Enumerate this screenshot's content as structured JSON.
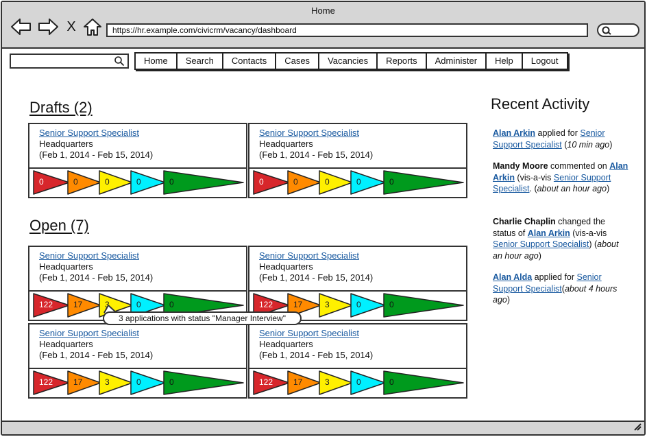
{
  "browser": {
    "title": "Home",
    "url": "https://hr.example.com/civicrm/vacancy/dashboard",
    "close_glyph": "X"
  },
  "site_search": {
    "value": ""
  },
  "nav": [
    "Home",
    "Search",
    "Contacts",
    "Cases",
    "Vacancies",
    "Reports",
    "Administer",
    "Help",
    "Logout"
  ],
  "drafts": {
    "title": "Drafts (2)",
    "cards": [
      {
        "title": "Senior Support Specialist",
        "location": "Headquarters",
        "dates": "(Feb 1, 2014 - Feb 15, 2014)",
        "counts": [
          "0",
          "0",
          "0",
          "0",
          "0"
        ]
      },
      {
        "title": "Senior Support Specialist",
        "location": "Headquarters",
        "dates": "(Feb 1, 2014 - Feb 15, 2014)",
        "counts": [
          "0",
          "0",
          "0",
          "0",
          "0"
        ]
      }
    ]
  },
  "open": {
    "title": "Open (7)",
    "cards": [
      {
        "title": "Senior Support Specialist",
        "location": "Headquarters",
        "dates": "(Feb 1, 2014 - Feb 15, 2014)",
        "counts": [
          "122",
          "17",
          "3",
          "0",
          "0"
        ]
      },
      {
        "title": "Senior Support Specialist",
        "location": "Headquarters",
        "dates": "(Feb 1, 2014 - Feb 15, 2014)",
        "counts": [
          "122",
          "17",
          "3",
          "0",
          "0"
        ]
      },
      {
        "title": "Senior Support Specialist",
        "location": "Headquarters",
        "dates": "(Feb 1, 2014 - Feb 15, 2014)",
        "counts": [
          "122",
          "17",
          "3",
          "0",
          "0"
        ]
      },
      {
        "title": "Senior Support Specialist",
        "location": "Headquarters",
        "dates": "(Feb 1, 2014 - Feb 15, 2014)",
        "counts": [
          "122",
          "17",
          "3",
          "0",
          "0"
        ]
      }
    ]
  },
  "tooltip": "3 applications with status \"Manager Interview\"",
  "stage_colors": [
    "#d7262b",
    "#ff8a00",
    "#fff000",
    "#00f0ff",
    "#009a1d"
  ],
  "recent": {
    "title": "Recent Activity",
    "items": [
      {
        "actor": "Alan Arkin",
        "actor_link": true,
        "parts": [
          {
            "t": "text",
            "v": " applied for "
          },
          {
            "t": "link",
            "v": "Senior Support Specialist"
          },
          {
            "t": "text",
            "v": " ("
          },
          {
            "t": "time",
            "v": "10 min ago"
          },
          {
            "t": "text",
            "v": ")"
          }
        ]
      },
      {
        "actor": "Mandy Moore",
        "actor_link": false,
        "parts": [
          {
            "t": "text",
            "v": " commented on "
          },
          {
            "t": "boldlink",
            "v": "Alan Arkin"
          },
          {
            "t": "text",
            "v": " (vis-a-vis "
          },
          {
            "t": "link",
            "v": "Senior Support Specialist"
          },
          {
            "t": "text",
            "v": ". ("
          },
          {
            "t": "time",
            "v": "about an hour ago"
          },
          {
            "t": "text",
            "v": ")"
          }
        ]
      },
      {
        "actor": "Charlie Chaplin",
        "actor_link": false,
        "parts": [
          {
            "t": "text",
            "v": " changed the status of "
          },
          {
            "t": "boldlink",
            "v": "Alan Arkin"
          },
          {
            "t": "text",
            "v": " (vis-a-vis "
          },
          {
            "t": "link",
            "v": "Senior Support Specialist"
          },
          {
            "t": "text",
            "v": ") ("
          },
          {
            "t": "time",
            "v": "about an hour ago"
          },
          {
            "t": "text",
            "v": ")"
          }
        ]
      },
      {
        "actor": "Alan Alda",
        "actor_link": true,
        "parts": [
          {
            "t": "text",
            "v": " applied for "
          },
          {
            "t": "link",
            "v": "Senior Support Specialist"
          },
          {
            "t": "text",
            "v": "("
          },
          {
            "t": "time",
            "v": "about 4 hours ago"
          },
          {
            "t": "text",
            "v": ")"
          }
        ]
      }
    ]
  }
}
